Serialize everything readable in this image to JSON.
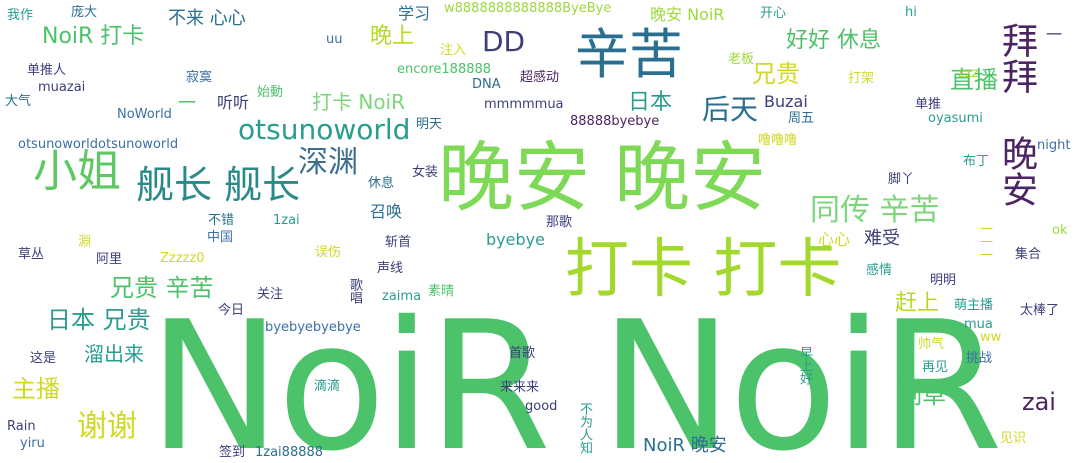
{
  "palette": {
    "green": "#4cc26a",
    "lime": "#9dd93a",
    "yellow": "#d9e021",
    "teal": "#2a9d8f",
    "blue": "#3b6fa5",
    "navy": "#3c3f7a",
    "purple": "#4b2563",
    "mint": "#7cd67c"
  },
  "words": {
    "noir_big": "NoiR NoiR",
    "wanan_big": "晚安 晚安",
    "daka_big": "打卡 打卡",
    "xinku": "辛苦",
    "xiaojie": "小姐",
    "jianzhang": "舰长 舰长",
    "baibai": "拜拜 晚安",
    "otsu": "otsunoworld",
    "shenyuan": "深渊",
    "tongchuan": "同传 辛苦",
    "dd": "DD",
    "noir_daka1": "NoiR 打卡",
    "wanshang": "晚上",
    "haohao": "好好 休息",
    "zhibo": "直播",
    "xiongui": "兄贵",
    "houtian": "后天",
    "riben": "日本",
    "daka_noir": "打卡 NoiR",
    "riben_xiongui": "日本 兄贵",
    "xiongui_xinku": "兄贵 辛苦",
    "xiexie": "谢谢",
    "zhubo": "主播",
    "liuchulai": "溜出来",
    "gecao": "割草",
    "zai": "zai",
    "ganshang": "赶上",
    "noir_wanan": "NoiR 晚安",
    "bulai": "不来 心心",
    "xuexi": "学习",
    "w888": "w8888888888888ByeBye",
    "wanan_noir": "晚安 NoiR",
    "kaixin": "开心",
    "hi": "hi",
    "woza": "我作",
    "pangda": "庞大",
    "uu": "uu",
    "zhuru": "注入",
    "laoban": "老板",
    "encore": "encore188888",
    "zzz": "zzz",
    "dantuiren": "单推人",
    "muazai": "muazai",
    "jimo": "寂寞",
    "chaogandong": "超感动",
    "dna": "DNA",
    "dajia": "打架",
    "daqi": "大气",
    "noworld": "NoWorld",
    "dash1": "一",
    "tingting": "听听",
    "shidong": "始動",
    "mmmua": "mmmmmua",
    "buzai": "Buzai",
    "dantui": "单推",
    "oyasumi": "oyasumi",
    "mingtian": "明天",
    "byebye888": "88888byebye",
    "zhouwu": "周五",
    "otsuotsu": "otsunoworldotsunoworld",
    "lulu": "噜噜噜",
    "night": "night",
    "budin": "布丁",
    "xiuxi": "休息",
    "nvzhuang": "女装",
    "jiaoya": "脚丫",
    "zhaohuan": "召唤",
    "bucuo": "不错",
    "onezai": "1zai",
    "nage": "那歌",
    "zhongguo": "中国",
    "byebye": "byebye",
    "xinxin": "心心",
    "nanshou": "难受",
    "ok": "ok",
    "caocong": "草丛",
    "ali": "阿里",
    "zzzz0": "Zzzzz0",
    "wushang": "误伤",
    "zhanshou": "斩首",
    "ganqing": "感情",
    "jihe": "集合",
    "shengxian": "声线",
    "mingming": "明明",
    "guanzhu": "关注",
    "zaima": "zaima",
    "suqing": "素晴",
    "menzhubo": "萌主播",
    "taibangle": "太棒了",
    "jinri": "今日",
    "byebyebye": "byebyebyebye",
    "mua": "mua",
    "shuaiqi": "帅气",
    "ww": "ww",
    "zheshi": "这是",
    "shouge": "首歌",
    "zaijian": "再见",
    "tiaozhan": "挑战",
    "didi": "滴滴",
    "lailailai": "来来来",
    "good": "good",
    "rain": "Rain",
    "yiru": "yiru",
    "qiandao": "签到",
    "onezai888": "1zai88888",
    "jianshi": "见识",
    "v_zhan": "淵",
    "v_gehao": "歌唱",
    "v_zaoshang": "早上好",
    "v_buweirenzhi": "不为人知",
    "v_yizhi": "一一一",
    "v_dash": "一"
  }
}
